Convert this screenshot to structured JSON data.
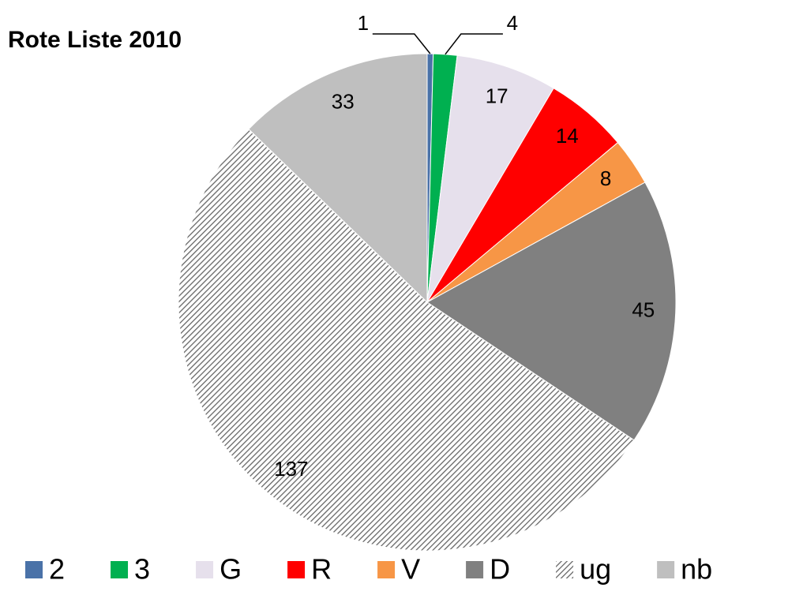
{
  "chart_data": {
    "type": "pie",
    "title": "Rote Liste 2010",
    "categories": [
      "2",
      "3",
      "G",
      "R",
      "V",
      "D",
      "ug",
      "nb"
    ],
    "values": [
      1,
      4,
      17,
      14,
      8,
      45,
      137,
      33
    ],
    "colors": [
      "#4a72a8",
      "#00b050",
      "#e6e0ec",
      "#ff0000",
      "#f79646",
      "#808080",
      "#7f7f7f",
      "#bfbfbf"
    ],
    "hatched": [
      "ug"
    ],
    "legend": "bottom"
  }
}
